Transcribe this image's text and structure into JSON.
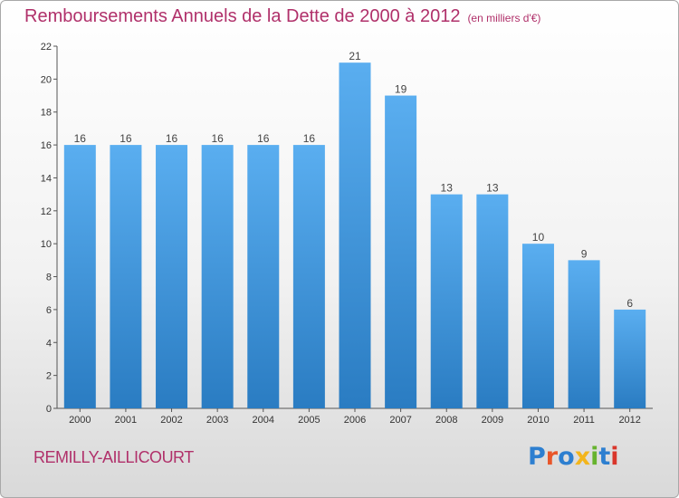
{
  "header": {
    "title": "Remboursements Annuels de la Dette de 2000 à 2012",
    "subtitle": "(en milliers d'€)"
  },
  "footer": {
    "place": "REMILLY-AILLICOURT",
    "logo": "Proxiti"
  },
  "colors": {
    "title": "#b0306a",
    "bar_top": "#5aaef0",
    "bar_bottom": "#2a7cc2"
  },
  "chart_data": {
    "type": "bar",
    "title": "Remboursements Annuels de la Dette de 2000 à 2012",
    "subtitle": "(en milliers d'€)",
    "xlabel": "",
    "ylabel": "",
    "ylim": [
      0,
      22
    ],
    "yticks": [
      0,
      2,
      4,
      6,
      8,
      10,
      12,
      14,
      16,
      18,
      20,
      22
    ],
    "grid": false,
    "categories": [
      "2000",
      "2001",
      "2002",
      "2003",
      "2004",
      "2005",
      "2006",
      "2007",
      "2008",
      "2009",
      "2010",
      "2011",
      "2012"
    ],
    "values": [
      16,
      16,
      16,
      16,
      16,
      16,
      21,
      19,
      13,
      13,
      10,
      9,
      6
    ]
  }
}
